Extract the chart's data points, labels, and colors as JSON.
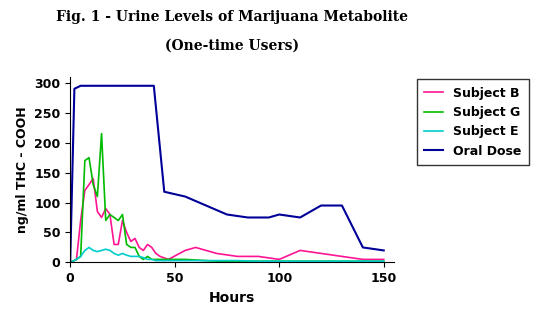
{
  "title_line1": "Fig. 1 - Urine Levels of Marijuana Metabolite",
  "title_line2": "(One-time Users)",
  "xlabel": "Hours",
  "ylabel": "ng/ml THC - COOH",
  "xlim": [
    0,
    155
  ],
  "ylim": [
    0,
    310
  ],
  "yticks": [
    0,
    50,
    100,
    150,
    200,
    250,
    300
  ],
  "xticks": [
    0,
    50,
    100,
    150
  ],
  "background_color": "#ffffff",
  "subject_b": {
    "label": "Subject B",
    "color": "#ff1493",
    "x": [
      0,
      3,
      5,
      7,
      9,
      11,
      13,
      15,
      17,
      19,
      21,
      23,
      25,
      27,
      29,
      31,
      33,
      35,
      37,
      39,
      41,
      43,
      47,
      55,
      60,
      70,
      80,
      90,
      100,
      110,
      120,
      130,
      140,
      150
    ],
    "y": [
      0,
      5,
      70,
      120,
      130,
      140,
      85,
      75,
      90,
      80,
      30,
      30,
      70,
      50,
      35,
      40,
      25,
      20,
      30,
      25,
      15,
      10,
      5,
      20,
      25,
      15,
      10,
      10,
      5,
      20,
      15,
      10,
      5,
      5
    ]
  },
  "subject_g": {
    "label": "Subject G",
    "color": "#00bb00",
    "x": [
      0,
      3,
      5,
      7,
      9,
      11,
      13,
      15,
      17,
      19,
      21,
      23,
      25,
      27,
      29,
      31,
      33,
      35,
      37,
      39,
      41,
      43,
      47,
      55,
      70,
      80,
      90,
      100,
      110,
      120,
      130,
      140,
      150
    ],
    "y": [
      0,
      5,
      10,
      170,
      175,
      130,
      110,
      215,
      70,
      80,
      75,
      70,
      80,
      30,
      25,
      25,
      10,
      5,
      10,
      5,
      5,
      5,
      5,
      5,
      2,
      2,
      2,
      2,
      2,
      2,
      2,
      2,
      2
    ]
  },
  "subject_e": {
    "label": "Subject E",
    "color": "#00cccc",
    "x": [
      0,
      3,
      5,
      7,
      9,
      11,
      13,
      15,
      17,
      19,
      21,
      23,
      25,
      27,
      29,
      31,
      33,
      35,
      37,
      39,
      41,
      43,
      47,
      55,
      70,
      80,
      90,
      100,
      110,
      120,
      130,
      140,
      150
    ],
    "y": [
      0,
      5,
      10,
      20,
      25,
      20,
      18,
      20,
      22,
      20,
      15,
      12,
      15,
      12,
      10,
      10,
      10,
      8,
      5,
      5,
      3,
      3,
      3,
      3,
      3,
      3,
      2,
      2,
      2,
      2,
      2,
      2,
      2
    ]
  },
  "oral_dose": {
    "label": "Oral Dose",
    "color": "#000099",
    "x": [
      0,
      2,
      5,
      40,
      45,
      55,
      75,
      85,
      95,
      100,
      110,
      120,
      130,
      140,
      150
    ],
    "y": [
      0,
      290,
      295,
      295,
      118,
      110,
      80,
      75,
      75,
      80,
      75,
      95,
      95,
      25,
      20
    ]
  },
  "title_fontsize": 10,
  "axis_label_fontsize": 10,
  "tick_fontsize": 9,
  "legend_fontsize": 9
}
